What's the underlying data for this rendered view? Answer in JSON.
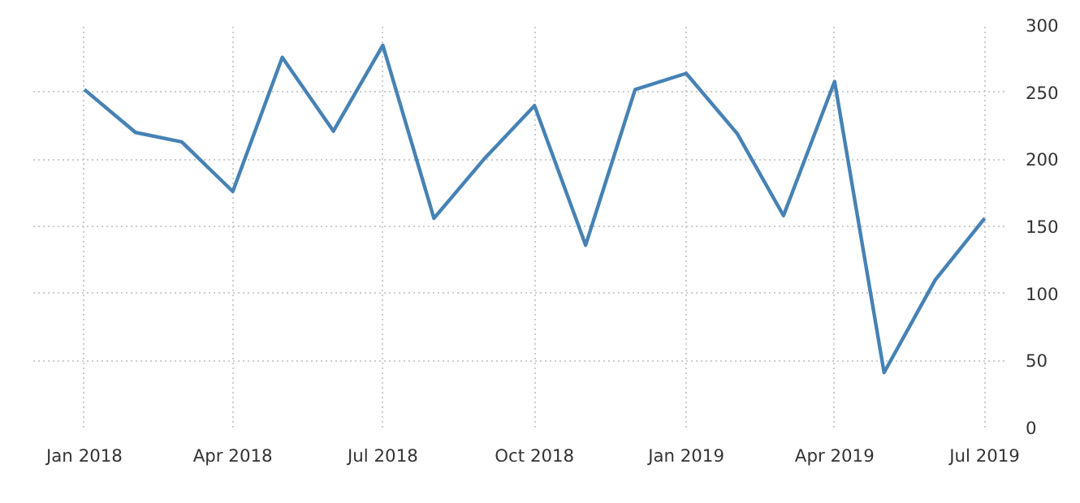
{
  "chart_data": {
    "type": "line",
    "x": [
      "2018-01",
      "2018-02",
      "2018-03",
      "2018-04",
      "2018-05",
      "2018-06",
      "2018-07",
      "2018-08",
      "2018-09",
      "2018-10",
      "2018-11",
      "2018-12",
      "2019-01",
      "2019-02",
      "2019-03",
      "2019-04",
      "2019-05",
      "2019-06",
      "2019-07"
    ],
    "series": [
      {
        "color": "#4682b4",
        "values": [
          252,
          220,
          213,
          176,
          276,
          221,
          285,
          156,
          201,
          240,
          136,
          252,
          264,
          219,
          158,
          258,
          41,
          110,
          156
        ]
      }
    ],
    "xlim": [
      "2017-12",
      "2019-07-15"
    ],
    "xticks": [
      {
        "value": "2018-01",
        "label": "Jan 2018"
      },
      {
        "value": "2018-04",
        "label": "Apr 2018"
      },
      {
        "value": "2018-07",
        "label": "Jul 2018"
      },
      {
        "value": "2018-10",
        "label": "Oct 2018"
      },
      {
        "value": "2019-01",
        "label": "Jan 2019"
      },
      {
        "value": "2019-04",
        "label": "Apr 2019"
      },
      {
        "value": "2019-07",
        "label": "Jul 2019"
      }
    ],
    "ylim": [
      0,
      300
    ],
    "yticks": [
      0,
      50,
      100,
      150,
      200,
      250,
      300
    ],
    "grid": true,
    "line_style": "solid"
  }
}
